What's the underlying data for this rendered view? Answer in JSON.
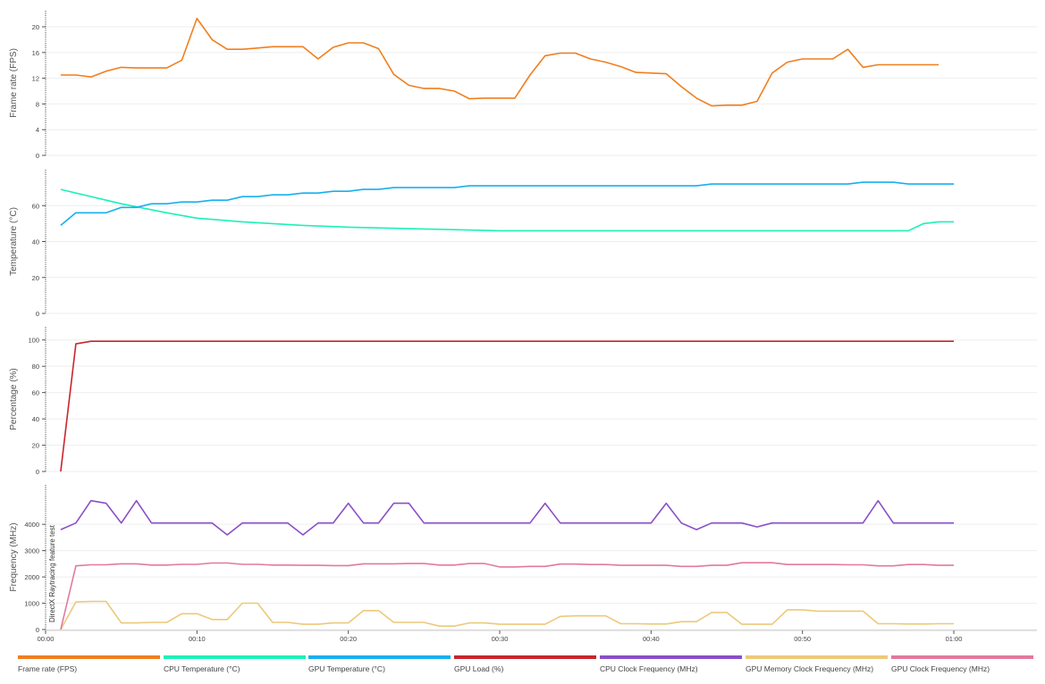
{
  "chart_data": {
    "type": "line",
    "x_ticks": [
      "00:00",
      "00:10",
      "00:20",
      "00:30",
      "00:40",
      "00:50",
      "01:00"
    ],
    "x_range_seconds": [
      0,
      60
    ],
    "annotation": "DirectX Raytracing feature test",
    "panels": [
      {
        "id": "fps",
        "ylabel": "Frame rate (FPS)",
        "ylim": [
          0,
          22.5
        ],
        "yticks": [
          0,
          4,
          8,
          12,
          16,
          20
        ],
        "series": [
          {
            "key": "fps",
            "color": "#f07f1f",
            "x": [
              1,
              2,
              3,
              4,
              5,
              6,
              7,
              8,
              9,
              10,
              11,
              12,
              13,
              14,
              15,
              16,
              17,
              18,
              19,
              20,
              21,
              22,
              23,
              24,
              25,
              26,
              27,
              28,
              29,
              30,
              31,
              32,
              33,
              34,
              35,
              36,
              37,
              38,
              39,
              40,
              41,
              42,
              43,
              44,
              45,
              46,
              47,
              48,
              49,
              50,
              51,
              52,
              53,
              54,
              55,
              56,
              57,
              58,
              59
            ],
            "values": [
              12.5,
              12.5,
              12.2,
              13.1,
              13.7,
              13.6,
              13.6,
              13.6,
              14.8,
              21.3,
              18.0,
              16.5,
              16.5,
              16.7,
              16.9,
              16.9,
              16.9,
              15.0,
              16.8,
              17.5,
              17.5,
              16.6,
              12.6,
              10.9,
              10.4,
              10.4,
              10.0,
              8.8,
              8.9,
              8.9,
              8.9,
              12.5,
              15.5,
              15.9,
              15.9,
              15.0,
              14.5,
              13.8,
              12.9,
              12.8,
              12.7,
              10.7,
              8.9,
              7.7,
              7.8,
              7.8,
              8.4,
              12.8,
              14.5,
              15.0,
              15.0,
              15.0,
              16.5,
              13.7,
              14.1,
              14.1,
              14.1,
              14.1,
              14.1
            ]
          }
        ]
      },
      {
        "id": "temp",
        "ylabel": "Temperature (°C)",
        "ylim": [
          0,
          80
        ],
        "yticks": [
          0,
          20,
          40,
          60
        ],
        "series": [
          {
            "key": "cpu_temp",
            "color": "#1ef0b8",
            "x": [
              1,
              5,
              8,
              10,
              13,
              17,
              20,
              25,
              30,
              35,
              40,
              45,
              50,
              55,
              57,
              58,
              59,
              60
            ],
            "values": [
              69,
              61,
              56,
              53,
              51,
              49,
              48,
              47,
              46,
              46,
              46,
              46,
              46,
              46,
              46,
              50,
              51,
              51
            ]
          },
          {
            "key": "gpu_temp",
            "color": "#17b0ee",
            "x": [
              1,
              2,
              3,
              4,
              5,
              6,
              7,
              8,
              9,
              10,
              11,
              12,
              13,
              14,
              15,
              16,
              17,
              18,
              19,
              20,
              21,
              22,
              23,
              24,
              25,
              26,
              27,
              28,
              29,
              30,
              35,
              40,
              43,
              44,
              45,
              50,
              53,
              54,
              55,
              56,
              57,
              58,
              59,
              60
            ],
            "values": [
              49,
              56,
              56,
              56,
              59,
              59,
              61,
              61,
              62,
              62,
              63,
              63,
              65,
              65,
              66,
              66,
              67,
              67,
              68,
              68,
              69,
              69,
              70,
              70,
              70,
              70,
              70,
              71,
              71,
              71,
              71,
              71,
              71,
              72,
              72,
              72,
              72,
              73,
              73,
              73,
              72,
              72,
              72,
              72
            ]
          }
        ]
      },
      {
        "id": "load",
        "ylabel": "Percentage (%)",
        "ylim": [
          0,
          110
        ],
        "yticks": [
          0,
          20,
          40,
          60,
          80,
          100
        ],
        "series": [
          {
            "key": "gpu_load",
            "color": "#c8262c",
            "x": [
              1,
              2,
              3,
              10,
              20,
              30,
              40,
              50,
              60
            ],
            "values": [
              0,
              97,
              99,
              99,
              99,
              99,
              99,
              99,
              99
            ]
          }
        ]
      },
      {
        "id": "freq",
        "ylabel": "Frequency (MHz)",
        "ylim": [
          0,
          5500
        ],
        "yticks": [
          0,
          1000,
          2000,
          3000,
          4000
        ],
        "series": [
          {
            "key": "cpu_clock",
            "color": "#8a4fc8",
            "x": [
              1,
              2,
              3,
              4,
              5,
              6,
              7,
              8,
              9,
              10,
              11,
              12,
              13,
              14,
              15,
              16,
              17,
              18,
              19,
              20,
              21,
              22,
              23,
              24,
              25,
              26,
              27,
              28,
              29,
              30,
              31,
              32,
              33,
              34,
              35,
              36,
              37,
              38,
              39,
              40,
              41,
              42,
              43,
              44,
              45,
              46,
              47,
              48,
              49,
              50,
              51,
              52,
              53,
              54,
              55,
              56,
              57,
              58,
              59,
              60
            ],
            "values": [
              3800,
              4050,
              4900,
              4800,
              4050,
              4900,
              4050,
              4050,
              4050,
              4050,
              4050,
              3600,
              4050,
              4050,
              4050,
              4050,
              3600,
              4050,
              4050,
              4800,
              4050,
              4050,
              4800,
              4800,
              4050,
              4050,
              4050,
              4050,
              4050,
              4050,
              4050,
              4050,
              4800,
              4050,
              4050,
              4050,
              4050,
              4050,
              4050,
              4050,
              4800,
              4050,
              3800,
              4050,
              4050,
              4050,
              3900,
              4050,
              4050,
              4050,
              4050,
              4050,
              4050,
              4050,
              4900,
              4050,
              4050,
              4050,
              4050,
              4050
            ]
          },
          {
            "key": "gpu_mem_clock",
            "color": "#ecc97a",
            "x": [
              1,
              2,
              3,
              4,
              5,
              6,
              7,
              8,
              9,
              10,
              11,
              12,
              13,
              14,
              15,
              16,
              17,
              18,
              19,
              20,
              21,
              22,
              23,
              24,
              25,
              26,
              27,
              28,
              29,
              30,
              31,
              32,
              33,
              34,
              35,
              36,
              37,
              38,
              39,
              40,
              41,
              42,
              43,
              44,
              45,
              46,
              47,
              48,
              49,
              50,
              51,
              52,
              53,
              54,
              55,
              56,
              57,
              58,
              59,
              60
            ],
            "values": [
              0,
              1050,
              1070,
              1070,
              250,
              250,
              270,
              270,
              600,
              600,
              380,
              380,
              1000,
              1000,
              270,
              270,
              200,
              200,
              250,
              250,
              720,
              720,
              270,
              270,
              270,
              130,
              130,
              250,
              250,
              200,
              200,
              200,
              200,
              500,
              520,
              520,
              520,
              220,
              220,
              210,
              210,
              300,
              300,
              650,
              650,
              200,
              200,
              200,
              750,
              750,
              700,
              700,
              700,
              700,
              220,
              220,
              210,
              210,
              220,
              220
            ]
          },
          {
            "key": "gpu_clock",
            "color": "#e3799f",
            "x": [
              1,
              2,
              3,
              4,
              5,
              6,
              7,
              8,
              9,
              10,
              11,
              12,
              13,
              14,
              15,
              16,
              17,
              18,
              19,
              20,
              21,
              22,
              23,
              24,
              25,
              26,
              27,
              28,
              29,
              30,
              31,
              32,
              33,
              34,
              35,
              36,
              37,
              38,
              39,
              40,
              41,
              42,
              43,
              44,
              45,
              46,
              47,
              48,
              49,
              50,
              51,
              52,
              53,
              54,
              55,
              56,
              57,
              58,
              59,
              60
            ],
            "values": [
              0,
              2420,
              2460,
              2460,
              2500,
              2500,
              2450,
              2450,
              2480,
              2480,
              2530,
              2530,
              2480,
              2480,
              2450,
              2450,
              2440,
              2440,
              2430,
              2430,
              2500,
              2500,
              2500,
              2510,
              2510,
              2450,
              2450,
              2510,
              2510,
              2380,
              2380,
              2400,
              2400,
              2490,
              2490,
              2470,
              2470,
              2440,
              2440,
              2440,
              2440,
              2400,
              2400,
              2440,
              2440,
              2540,
              2540,
              2540,
              2470,
              2470,
              2470,
              2470,
              2460,
              2460,
              2420,
              2420,
              2470,
              2470,
              2440,
              2440
            ]
          }
        ]
      }
    ],
    "legend": [
      {
        "key": "fps",
        "label": "Frame rate (FPS)",
        "color": "#f07f1f"
      },
      {
        "key": "cpu_temp",
        "label": "CPU Temperature (°C)",
        "color": "#1ef0b8"
      },
      {
        "key": "gpu_temp",
        "label": "GPU Temperature (°C)",
        "color": "#17b0ee"
      },
      {
        "key": "gpu_load",
        "label": "GPU Load (%)",
        "color": "#c8262c"
      },
      {
        "key": "cpu_clock",
        "label": "CPU Clock Frequency (MHz)",
        "color": "#8a4fc8"
      },
      {
        "key": "gpu_mem_clock",
        "label": "GPU Memory Clock Frequency (MHz)",
        "color": "#ecc97a"
      },
      {
        "key": "gpu_clock",
        "label": "GPU Clock Frequency (MHz)",
        "color": "#e3799f"
      }
    ],
    "legend_position": "bottom",
    "grid": true
  }
}
